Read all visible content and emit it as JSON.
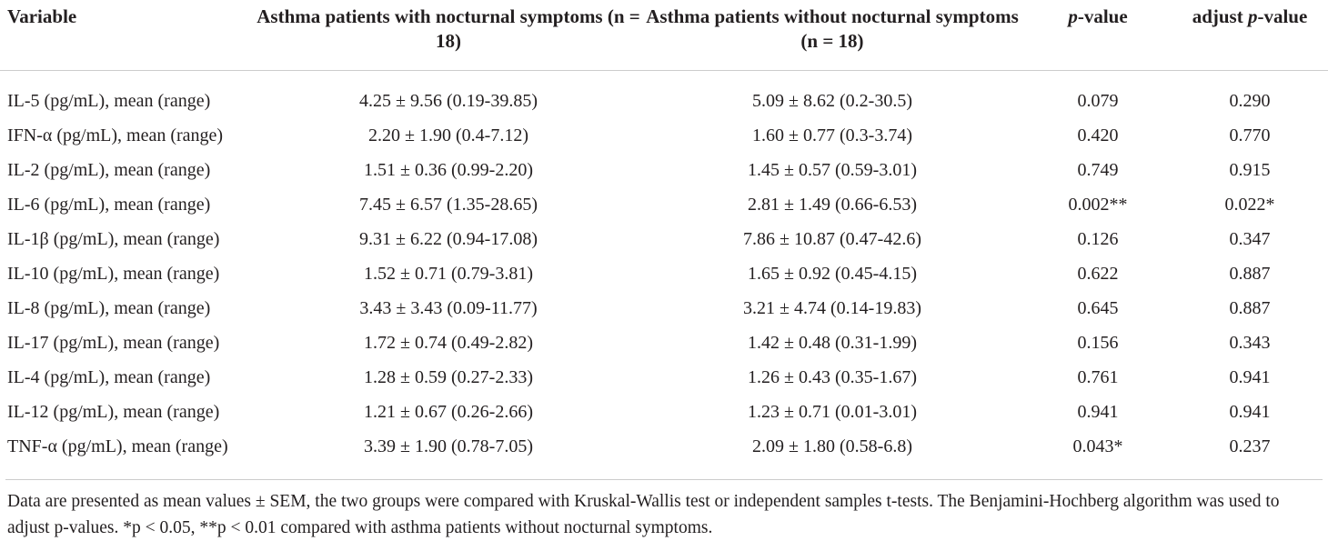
{
  "table": {
    "columns": {
      "variable": "Variable",
      "group1": "Asthma patients with nocturnal symptoms (n = 18)",
      "group2": "Asthma patients without nocturnal symptoms (n = 18)",
      "p_value": {
        "pre": "",
        "italic": "p",
        "post": "-value"
      },
      "adjust_p_value": {
        "pre": "adjust ",
        "italic": "p",
        "post": "-value"
      }
    },
    "rows": [
      {
        "variable": "IL-5 (pg/mL), mean (range)",
        "group1": "4.25 ± 9.56 (0.19-39.85)",
        "group2": "5.09 ± 8.62 (0.2-30.5)",
        "p_value": "0.079",
        "adjust_p_value": "0.290"
      },
      {
        "variable": "IFN-α (pg/mL), mean (range)",
        "group1": "2.20 ± 1.90 (0.4-7.12)",
        "group2": "1.60 ± 0.77 (0.3-3.74)",
        "p_value": "0.420",
        "adjust_p_value": "0.770"
      },
      {
        "variable": "IL-2 (pg/mL), mean (range)",
        "group1": "1.51 ± 0.36 (0.99-2.20)",
        "group2": "1.45 ± 0.57 (0.59-3.01)",
        "p_value": "0.749",
        "adjust_p_value": "0.915"
      },
      {
        "variable": "IL-6 (pg/mL), mean (range)",
        "group1": "7.45 ± 6.57 (1.35-28.65)",
        "group2": "2.81 ± 1.49 (0.66-6.53)",
        "p_value": "0.002**",
        "adjust_p_value": "0.022*"
      },
      {
        "variable": "IL-1β (pg/mL), mean (range)",
        "group1": "9.31 ± 6.22 (0.94-17.08)",
        "group2": "7.86 ± 10.87 (0.47-42.6)",
        "p_value": "0.126",
        "adjust_p_value": "0.347"
      },
      {
        "variable": "IL-10 (pg/mL), mean (range)",
        "group1": "1.52 ± 0.71 (0.79-3.81)",
        "group2": "1.65 ± 0.92 (0.45-4.15)",
        "p_value": "0.622",
        "adjust_p_value": "0.887"
      },
      {
        "variable": "IL-8 (pg/mL), mean (range)",
        "group1": "3.43 ± 3.43 (0.09-11.77)",
        "group2": "3.21 ± 4.74 (0.14-19.83)",
        "p_value": "0.645",
        "adjust_p_value": "0.887"
      },
      {
        "variable": "IL-17 (pg/mL), mean (range)",
        "group1": "1.72 ± 0.74 (0.49-2.82)",
        "group2": "1.42 ± 0.48 (0.31-1.99)",
        "p_value": "0.156",
        "adjust_p_value": "0.343"
      },
      {
        "variable": "IL-4 (pg/mL), mean (range)",
        "group1": "1.28 ± 0.59 (0.27-2.33)",
        "group2": "1.26 ± 0.43 (0.35-1.67)",
        "p_value": "0.761",
        "adjust_p_value": "0.941"
      },
      {
        "variable": "IL-12 (pg/mL), mean (range)",
        "group1": "1.21 ± 0.67 (0.26-2.66)",
        "group2": "1.23 ± 0.71 (0.01-3.01)",
        "p_value": "0.941",
        "adjust_p_value": "0.941"
      },
      {
        "variable": "TNF-α (pg/mL), mean (range)",
        "group1": "3.39 ± 1.90 (0.78-7.05)",
        "group2": "2.09 ± 1.80 (0.58-6.8)",
        "p_value": "0.043*",
        "adjust_p_value": "0.237"
      }
    ]
  },
  "footnote": "Data are presented as mean values ± SEM, the two groups were compared with Kruskal-Wallis test or independent samples t-tests. The Benjamini-Hochberg algorithm was used to adjust p-values. *p < 0.05, **p < 0.01 compared with asthma patients without nocturnal symptoms."
}
